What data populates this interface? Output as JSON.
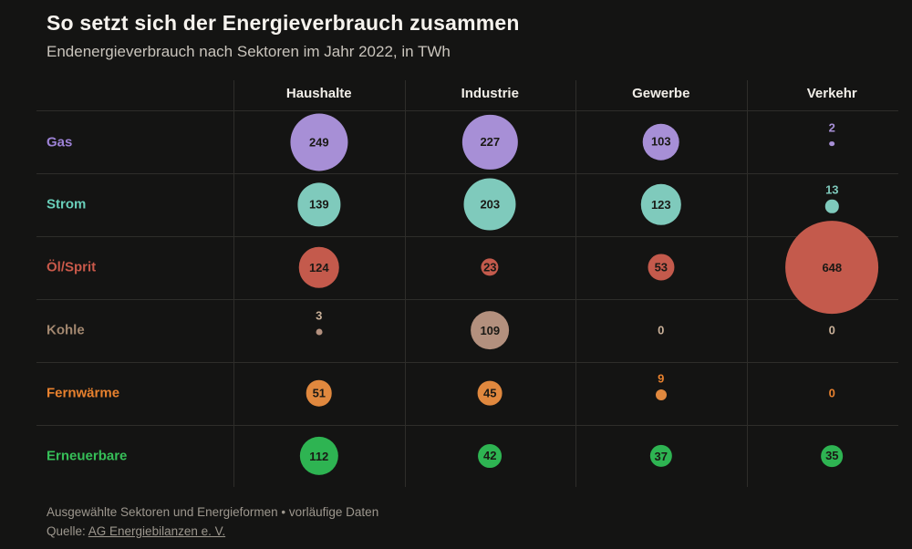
{
  "header": {
    "title": "So setzt sich der Energieverbrauch zusammen",
    "subtitle": "Endenergieverbrauch nach Sektoren im Jahr 2022, in TWh"
  },
  "chart_data": {
    "type": "bubble-matrix",
    "title": "So setzt sich der Energieverbrauch zusammen",
    "subtitle": "Endenergieverbrauch nach Sektoren im Jahr 2022, in TWh",
    "unit": "TWh",
    "year": "2022",
    "columns": [
      "Haushalte",
      "Industrie",
      "Gewerbe",
      "Verkehr"
    ],
    "rows": [
      {
        "label": "Gas",
        "color": "#a78fd6",
        "label_color": "#9d82d6",
        "value_label_color": "#a78fd6",
        "values": [
          249,
          227,
          103,
          2
        ]
      },
      {
        "label": "Strom",
        "color": "#7fcabc",
        "label_color": "#69cfba",
        "value_label_color": "#7fcabc",
        "values": [
          139,
          203,
          123,
          13
        ]
      },
      {
        "label": "Öl/Sprit",
        "color": "#c45a4c",
        "label_color": "#c9594a",
        "value_label_color": "#cc6a5c",
        "values": [
          124,
          23,
          53,
          648
        ]
      },
      {
        "label": "Kohle",
        "color": "#b3907e",
        "label_color": "#a2876f",
        "value_label_color": "#c9b098",
        "values": [
          3,
          109,
          0,
          0
        ]
      },
      {
        "label": "Fernwärme",
        "color": "#e0883e",
        "label_color": "#e8812e",
        "value_label_color": "#e8812e",
        "values": [
          51,
          45,
          9,
          0
        ]
      },
      {
        "label": "Erneuerbare",
        "color": "#2eb452",
        "label_color": "#36bf58",
        "value_label_color": "#36bf58",
        "values": [
          112,
          42,
          37,
          35
        ]
      }
    ],
    "value_text_color": "#1a1915",
    "bubble_scale": "radius_px = 2 * sqrt(value)",
    "grid": true,
    "legend_position": "none"
  },
  "footer": {
    "note": "Ausgewählte Sektoren und Energieformen • vorläufige Daten",
    "source_prefix": "Quelle: ",
    "source_link": "AG Energiebilanzen e. V."
  }
}
